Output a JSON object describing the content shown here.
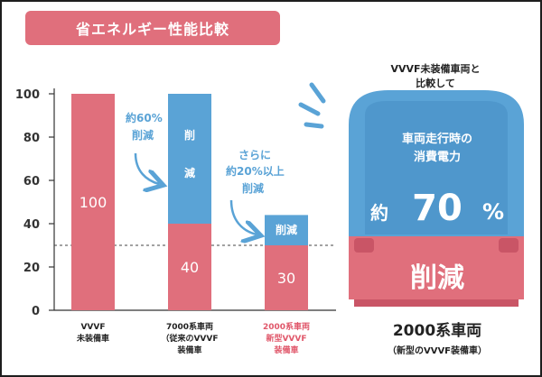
{
  "title": "省エネルギー性能比較",
  "colors": {
    "pink": "#e06f7c",
    "blue": "#5aa3d6",
    "dark": "#1e1e1e"
  },
  "chart_data": {
    "type": "bar",
    "stacked": true,
    "title": "省エネルギー性能比較",
    "ylim": [
      0,
      100
    ],
    "yticks": [
      0,
      20,
      40,
      60,
      80,
      100
    ],
    "reference_line": 30,
    "categories": [
      {
        "lines": [
          "VVVF",
          "未装備車"
        ],
        "highlight": false
      },
      {
        "lines": [
          "7000系車両",
          "（従来のVVVF",
          "装備車"
        ],
        "highlight": false
      },
      {
        "lines": [
          "2000系車両",
          "新型VVVF",
          "装備車"
        ],
        "highlight": true
      }
    ],
    "series": [
      {
        "values": [
          100,
          40,
          30
        ],
        "labels": [
          "100",
          "40",
          "30"
        ]
      },
      {
        "values": [
          0,
          60,
          14
        ],
        "labels": [
          "",
          "削減",
          "削減"
        ]
      }
    ]
  },
  "annotations": {
    "a1_line1": "約60%",
    "a1_line2": "削減",
    "a2_line1": "さらに",
    "a2_line2": "約20%以上",
    "a2_line3": "削減"
  },
  "train": {
    "caption_line1": "VVVF未装備車両と",
    "caption_line2": "比較して",
    "line1": "車両走行時の",
    "line2": "消費電力",
    "prefix": "約",
    "number": "70",
    "unit": "%",
    "reduction": "削減",
    "name": "2000系車両",
    "sub": "（新型のVVVF装備車）"
  }
}
